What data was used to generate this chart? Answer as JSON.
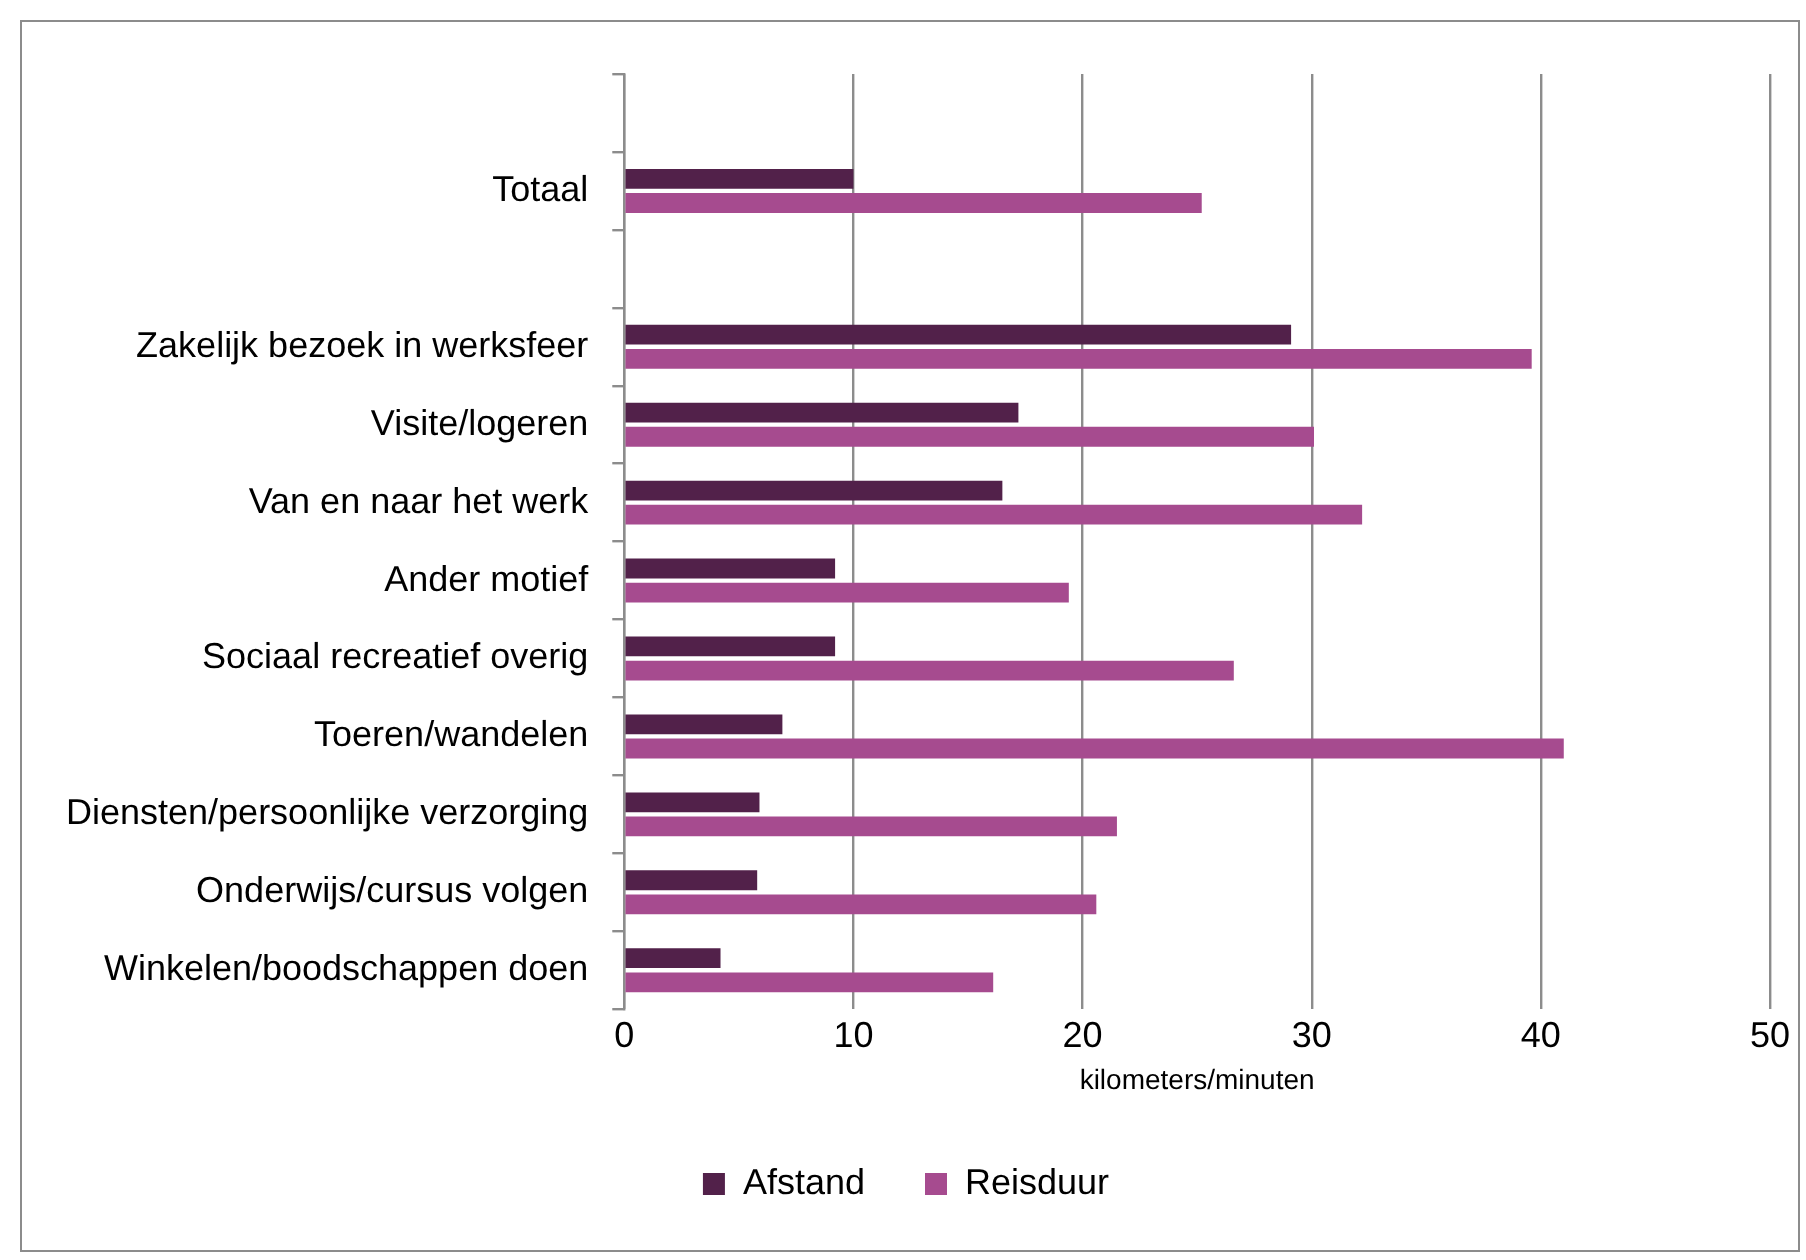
{
  "chart_data": {
    "type": "bar",
    "orientation": "horizontal",
    "xlabel": "kilometers/minuten",
    "categories": [
      null,
      "Totaal",
      null,
      "Zakelijk bezoek in werksfeer",
      "Visite/logeren",
      "Van en naar het werk",
      "Ander motief",
      "Sociaal recreatief overig",
      "Toeren/wandelen",
      "Diensten/persoonlijke verzorging",
      "Onderwijs/cursus volgen",
      "Winkelen/boodschappen doen"
    ],
    "series": [
      {
        "name": "Afstand",
        "color": "#52214a",
        "values": [
          null,
          10.0,
          null,
          29.1,
          17.2,
          16.5,
          9.2,
          9.2,
          6.9,
          5.9,
          5.8,
          4.2
        ]
      },
      {
        "name": "Reisduur",
        "color": "#a64b8f",
        "values": [
          null,
          25.2,
          null,
          39.6,
          30.1,
          32.2,
          19.4,
          26.6,
          41.0,
          21.5,
          20.6,
          16.1
        ]
      }
    ],
    "xlim": [
      0,
      50
    ],
    "xticks": [
      0,
      10,
      20,
      30,
      40,
      50
    ],
    "grid": "x",
    "legend": "bottom"
  }
}
